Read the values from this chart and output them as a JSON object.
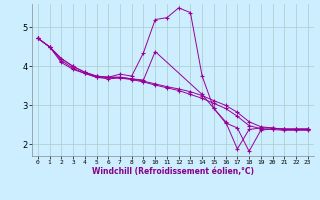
{
  "title": "",
  "xlabel": "Windchill (Refroidissement éolien,°C)",
  "ylabel": "",
  "background_color": "#cceeff",
  "line_color": "#990099",
  "grid_color": "#aacccc",
  "xlim": [
    -0.5,
    23.5
  ],
  "ylim": [
    1.7,
    5.6
  ],
  "yticks": [
    2,
    3,
    4,
    5
  ],
  "xticks": [
    0,
    1,
    2,
    3,
    4,
    5,
    6,
    7,
    8,
    9,
    10,
    11,
    12,
    13,
    14,
    15,
    16,
    17,
    18,
    19,
    20,
    21,
    22,
    23
  ],
  "lines": [
    {
      "x": [
        0,
        1,
        2,
        3,
        4,
        5,
        6,
        7,
        8,
        9,
        10,
        11,
        12,
        13,
        14,
        15,
        16,
        17,
        18,
        19,
        20,
        21,
        22,
        23
      ],
      "y": [
        4.72,
        4.5,
        4.2,
        4.0,
        3.85,
        3.75,
        3.72,
        3.8,
        3.75,
        4.35,
        5.2,
        5.25,
        5.5,
        5.38,
        3.75,
        2.92,
        2.58,
        1.88,
        2.38,
        2.42,
        2.42,
        2.38,
        2.38,
        2.38
      ]
    },
    {
      "x": [
        0,
        1,
        2,
        3,
        4,
        5,
        6,
        7,
        8,
        9,
        10,
        11,
        12,
        13,
        14,
        15,
        16,
        17,
        18,
        19,
        20,
        21,
        22,
        23
      ],
      "y": [
        4.72,
        4.5,
        4.2,
        4.0,
        3.85,
        3.75,
        3.72,
        3.72,
        3.68,
        3.62,
        3.55,
        3.48,
        3.42,
        3.35,
        3.25,
        3.12,
        3.0,
        2.82,
        2.58,
        2.45,
        2.42,
        2.38,
        2.38,
        2.38
      ]
    },
    {
      "x": [
        0,
        1,
        2,
        3,
        4,
        5,
        6,
        7,
        8,
        9,
        10,
        11,
        12,
        13,
        14,
        15,
        16,
        17,
        18,
        19,
        20,
        21,
        22,
        23
      ],
      "y": [
        4.72,
        4.5,
        4.15,
        3.95,
        3.82,
        3.72,
        3.68,
        3.7,
        3.66,
        3.6,
        3.52,
        3.45,
        3.38,
        3.28,
        3.18,
        3.05,
        2.92,
        2.72,
        2.48,
        2.4,
        2.38,
        2.36,
        2.36,
        2.36
      ]
    },
    {
      "x": [
        0,
        1,
        2,
        3,
        4,
        5,
        6,
        7,
        8,
        9,
        10,
        14,
        15,
        16,
        17,
        18,
        19,
        20,
        21,
        22,
        23
      ],
      "y": [
        4.72,
        4.5,
        4.1,
        3.92,
        3.82,
        3.72,
        3.72,
        3.72,
        3.68,
        3.65,
        4.38,
        3.28,
        2.92,
        2.55,
        2.42,
        1.82,
        2.36,
        2.4,
        2.4,
        2.4,
        2.4
      ]
    }
  ]
}
